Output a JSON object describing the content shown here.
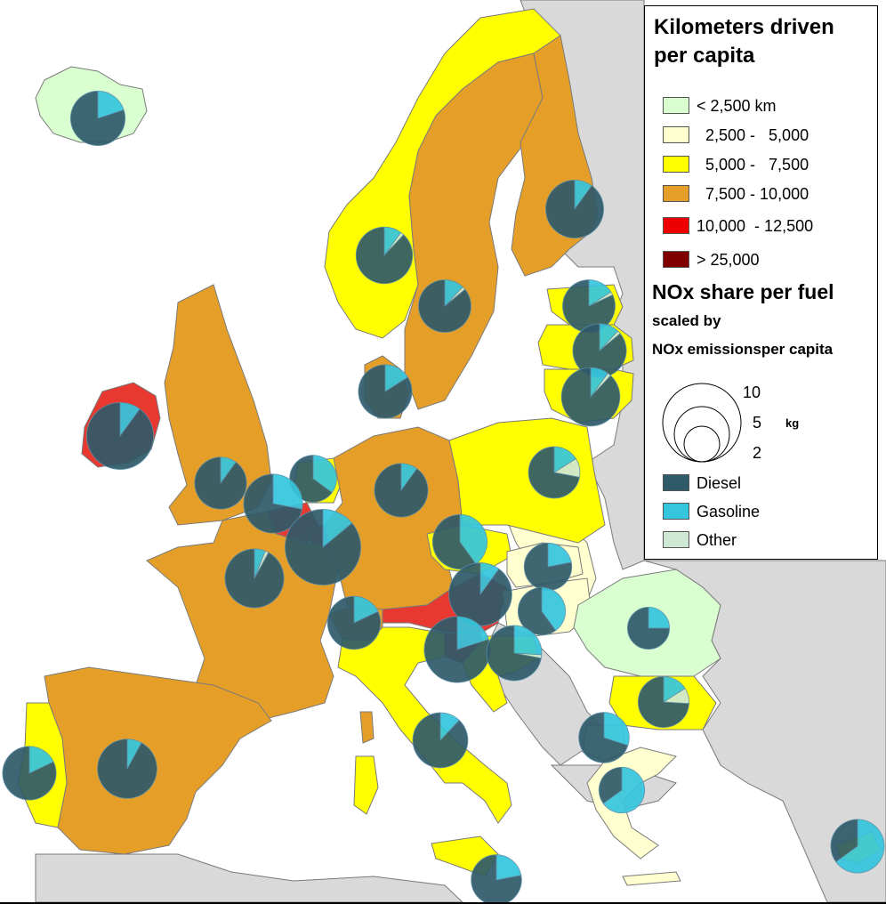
{
  "colors": {
    "sea": "#ffffff",
    "nonEU": "#d9d9d9",
    "border": "#7a7a7a",
    "diesel": "#2f5a6a",
    "gasoline": "#35c6de",
    "other": "#cfe8d4",
    "piePedge": "#5b8fa8"
  },
  "legend": {
    "km_title": "Kilometers driven per capita",
    "km_title_line1": "Kilometers driven",
    "km_title_line2": "per capita",
    "km_classes": [
      {
        "label": "< 2,500 km",
        "color": "#d9ffd1"
      },
      {
        "label": "  2,500 -   5,000",
        "color": "#ffffd0"
      },
      {
        "label": "  5,000 -   7,500",
        "color": "#ffff00"
      },
      {
        "label": "  7,500 - 10,000",
        "color": "#e59f29"
      },
      {
        "label": "10,000  - 12,500",
        "color": "#e8382f"
      },
      {
        "label": "> 25,000",
        "color": "#800000"
      }
    ],
    "nox_title": "NOx share per fuel",
    "nox_sub1": "scaled by",
    "nox_sub2": "NOx emissionsper capita",
    "size_values": [
      "10",
      "5",
      "2"
    ],
    "size_unit": "kg",
    "fuels": [
      {
        "label": "Diesel",
        "color": "#2f5a6a"
      },
      {
        "label": "Gasoline",
        "color": "#35c6de"
      },
      {
        "label": "Other",
        "color": "#cfe8d4"
      }
    ]
  },
  "countries": [
    {
      "name": "Iceland",
      "km_class": "< 2,500 km",
      "nox_kg": 5.4,
      "shares": {
        "diesel": 0.8,
        "gasoline": 0.2,
        "other": 0
      }
    },
    {
      "name": "Norway",
      "km_class": "5,000 - 7,500",
      "nox_kg": 5.8,
      "shares": {
        "diesel": 0.88,
        "gasoline": 0.1,
        "other": 0.02
      }
    },
    {
      "name": "Sweden",
      "km_class": "7,500 - 10,000",
      "nox_kg": 5.0,
      "shares": {
        "diesel": 0.86,
        "gasoline": 0.12,
        "other": 0.02
      }
    },
    {
      "name": "Finland",
      "km_class": "7,500 - 10,000",
      "nox_kg": 6.1,
      "shares": {
        "diesel": 0.9,
        "gasoline": 0.1,
        "other": 0
      }
    },
    {
      "name": "Estonia",
      "km_class": "5,000 - 7,500",
      "nox_kg": 5.0,
      "shares": {
        "diesel": 0.82,
        "gasoline": 0.16,
        "other": 0.02
      }
    },
    {
      "name": "Latvia",
      "km_class": "5,000 - 7,500",
      "nox_kg": 5.2,
      "shares": {
        "diesel": 0.86,
        "gasoline": 0.12,
        "other": 0.02
      }
    },
    {
      "name": "Lithuania",
      "km_class": "5,000 - 7,500",
      "nox_kg": 6.2,
      "shares": {
        "diesel": 0.88,
        "gasoline": 0.1,
        "other": 0.02
      }
    },
    {
      "name": "Denmark",
      "km_class": "7,500 - 10,000",
      "nox_kg": 5.2,
      "shares": {
        "diesel": 0.84,
        "gasoline": 0.16,
        "other": 0
      }
    },
    {
      "name": "Ireland",
      "km_class": "10,000 - 12,500",
      "nox_kg": 8.1,
      "shares": {
        "diesel": 0.9,
        "gasoline": 0.1,
        "other": 0
      }
    },
    {
      "name": "United Kingdom",
      "km_class": "7,500 - 10,000",
      "nox_kg": 4.9,
      "shares": {
        "diesel": 0.9,
        "gasoline": 0.1,
        "other": 0
      }
    },
    {
      "name": "Netherlands",
      "km_class": "5,000 - 7,500",
      "nox_kg": 4.0,
      "shares": {
        "diesel": 0.65,
        "gasoline": 0.35,
        "other": 0
      }
    },
    {
      "name": "Belgium",
      "km_class": "10,000 - 12,500",
      "nox_kg": 6.3,
      "shares": {
        "diesel": 0.72,
        "gasoline": 0.28,
        "other": 0
      }
    },
    {
      "name": "Luxembourg",
      "km_class": "10,000 - 12,500",
      "nox_kg": 10.4,
      "shares": {
        "diesel": 0.86,
        "gasoline": 0.14,
        "other": 0
      }
    },
    {
      "name": "Germany",
      "km_class": "7,500 - 10,000",
      "nox_kg": 5.2,
      "shares": {
        "diesel": 0.9,
        "gasoline": 0.1,
        "other": 0
      }
    },
    {
      "name": "Poland",
      "km_class": "5,000 - 7,500",
      "nox_kg": 4.8,
      "shares": {
        "diesel": 0.72,
        "gasoline": 0.16,
        "other": 0.12
      }
    },
    {
      "name": "Czech Republic",
      "km_class": "5,000 - 7,500",
      "nox_kg": 5.4,
      "shares": {
        "diesel": 0.6,
        "gasoline": 0.4,
        "other": 0
      }
    },
    {
      "name": "Austria",
      "km_class": "10,000 - 12,500",
      "nox_kg": 7.2,
      "shares": {
        "diesel": 0.9,
        "gasoline": 0.1,
        "other": 0
      }
    },
    {
      "name": "Slovakia",
      "km_class": "2,500 - 5,000",
      "nox_kg": 4.1,
      "shares": {
        "diesel": 0.78,
        "gasoline": 0.22,
        "other": 0
      }
    },
    {
      "name": "Hungary",
      "km_class": "2,500 - 5,000",
      "nox_kg": 4.1,
      "shares": {
        "diesel": 0.6,
        "gasoline": 0.4,
        "other": 0
      }
    },
    {
      "name": "Slovenia",
      "km_class": "10,000 - 12,500",
      "nox_kg": 7.9,
      "shares": {
        "diesel": 0.8,
        "gasoline": 0.2,
        "other": 0
      }
    },
    {
      "name": "France",
      "km_class": "7,500 - 10,000",
      "nox_kg": 6.3,
      "shares": {
        "diesel": 0.92,
        "gasoline": 0.06,
        "other": 0.02
      }
    },
    {
      "name": "Switzerland",
      "km_class": "7,500 - 10,000",
      "nox_kg": 5.1,
      "shares": {
        "diesel": 0.82,
        "gasoline": 0.18,
        "other": 0
      }
    },
    {
      "name": "Croatia",
      "km_class": "5,000 - 7,500",
      "nox_kg": 5.5,
      "shares": {
        "diesel": 0.72,
        "gasoline": 0.26,
        "other": 0.02
      }
    },
    {
      "name": "Romania",
      "km_class": "< 2,500 km",
      "nox_kg": 3.2,
      "shares": {
        "diesel": 0.75,
        "gasoline": 0.25,
        "other": 0
      }
    },
    {
      "name": "Bulgaria",
      "km_class": "5,000 - 7,500",
      "nox_kg": 4.7,
      "shares": {
        "diesel": 0.74,
        "gasoline": 0.16,
        "other": 0.1
      }
    },
    {
      "name": "Macedonia",
      "km_class": "< 2,500 km",
      "nox_kg": 4.6,
      "shares": {
        "diesel": 0.7,
        "gasoline": 0.3,
        "other": 0
      }
    },
    {
      "name": "Greece",
      "km_class": "2,500 - 5,000",
      "nox_kg": 3.8,
      "shares": {
        "diesel": 0.35,
        "gasoline": 0.65,
        "other": 0
      }
    },
    {
      "name": "Italy",
      "km_class": "5,000 - 7,500",
      "nox_kg": 5.5,
      "shares": {
        "diesel": 0.88,
        "gasoline": 0.12,
        "other": 0
      }
    },
    {
      "name": "Sicily",
      "km_class": "5,000 - 7,500",
      "nox_kg": 4.6,
      "shares": {
        "diesel": 0.78,
        "gasoline": 0.22,
        "other": 0
      }
    },
    {
      "name": "Spain",
      "km_class": "7,500 - 10,000",
      "nox_kg": 6.4,
      "shares": {
        "diesel": 0.92,
        "gasoline": 0.08,
        "other": 0
      }
    },
    {
      "name": "Portugal",
      "km_class": "5,000 - 7,500",
      "nox_kg": 5.2,
      "shares": {
        "diesel": 0.82,
        "gasoline": 0.18,
        "other": 0
      }
    },
    {
      "name": "Cyprus",
      "km_class": "5,000 - 7,500",
      "nox_kg": 5.2,
      "shares": {
        "diesel": 0.35,
        "gasoline": 0.65,
        "other": 0
      }
    }
  ]
}
